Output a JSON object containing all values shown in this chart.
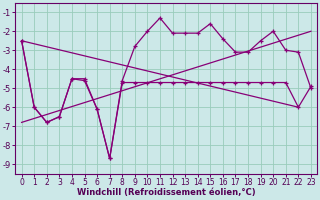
{
  "xlabel": "Windchill (Refroidissement éolien,°C)",
  "background_color": "#cce8e8",
  "grid_color": "#99ccbb",
  "line_color": "#880077",
  "series1_x": [
    0,
    1,
    2,
    3,
    4,
    5,
    6,
    7,
    8,
    9,
    10,
    11,
    12,
    13,
    14,
    15,
    16,
    17,
    18,
    19,
    20,
    21,
    22,
    23
  ],
  "series1_y": [
    -2.5,
    -6.0,
    -6.8,
    -6.5,
    -4.5,
    -4.5,
    -6.1,
    -8.7,
    -4.6,
    -2.8,
    -2.0,
    -1.3,
    -2.1,
    -2.1,
    -2.1,
    -1.6,
    -2.4,
    -3.1,
    -3.1,
    -2.5,
    -2.0,
    -3.0,
    -3.1,
    -5.0
  ],
  "series2_x": [
    0,
    1,
    2,
    3,
    4,
    5,
    6,
    7,
    8,
    9,
    10,
    11,
    12,
    13,
    14,
    15,
    16,
    17,
    18,
    19,
    20,
    21,
    22,
    23
  ],
  "series2_y": [
    -2.5,
    -6.0,
    -6.8,
    -6.5,
    -4.5,
    -4.6,
    -6.1,
    -8.7,
    -4.7,
    -4.7,
    -4.7,
    -4.7,
    -4.7,
    -4.7,
    -4.7,
    -4.7,
    -4.7,
    -4.7,
    -4.7,
    -4.7,
    -4.7,
    -4.7,
    -6.0,
    -4.9
  ],
  "series3_x": [
    0,
    22
  ],
  "series3_y": [
    -2.5,
    -6.0
  ],
  "series4_x": [
    0,
    23
  ],
  "series4_y": [
    -6.8,
    -2.0
  ],
  "ylim": [
    -9.5,
    -0.5
  ],
  "xlim": [
    -0.5,
    23.5
  ],
  "yticks": [
    -9,
    -8,
    -7,
    -6,
    -5,
    -4,
    -3,
    -2,
    -1
  ],
  "xticks": [
    0,
    1,
    2,
    3,
    4,
    5,
    6,
    7,
    8,
    9,
    10,
    11,
    12,
    13,
    14,
    15,
    16,
    17,
    18,
    19,
    20,
    21,
    22,
    23
  ],
  "tick_fontsize": 5.5,
  "xlabel_fontsize": 6.0
}
